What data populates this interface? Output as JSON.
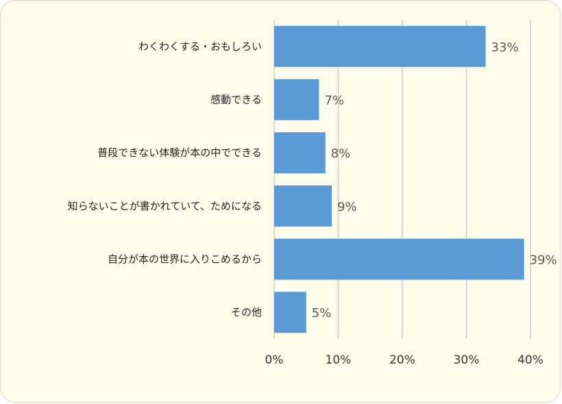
{
  "chart_data": {
    "type": "bar",
    "orientation": "horizontal",
    "categories": [
      "わくわくする・おもしろい",
      "感動できる",
      "普段できない体験が本の中でできる",
      "知らないことが書かれていて、ためになる",
      "自分が本の世界に入りこめるから",
      "その他"
    ],
    "values": [
      33,
      7,
      8,
      9,
      39,
      5
    ],
    "value_labels": [
      "33%",
      "7%",
      "8%",
      "9%",
      "39%",
      "5%"
    ],
    "x_ticks": [
      0,
      10,
      20,
      30,
      40
    ],
    "x_tick_labels": [
      "0%",
      "10%",
      "20%",
      "30%",
      "40%"
    ],
    "xlim": [
      0,
      40
    ],
    "grid": true,
    "bar_color": "#5b9bd5",
    "background_color": "#fefdeb"
  }
}
